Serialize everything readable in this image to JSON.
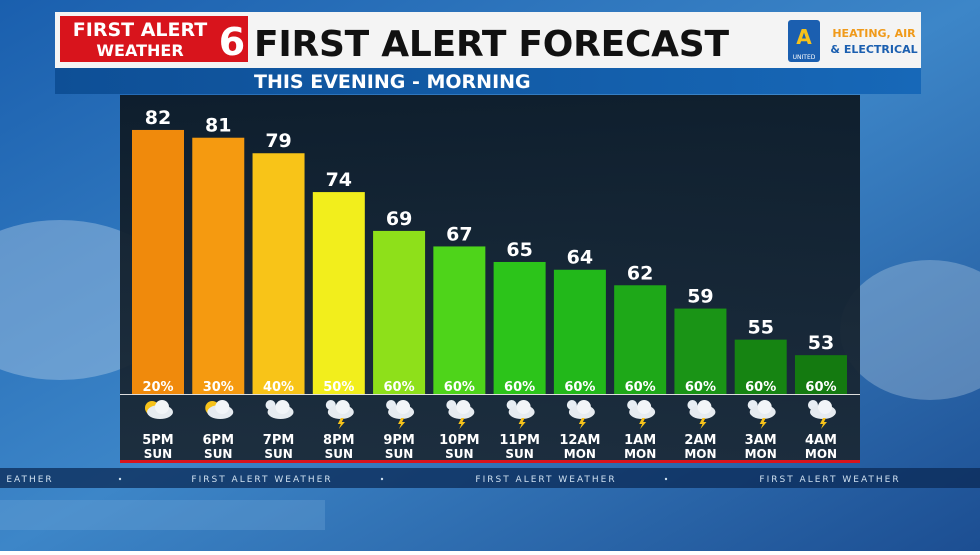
{
  "header": {
    "logo_line1": "FIRST ALERT",
    "logo_line2": "WEATHER",
    "logo_number": "6",
    "title": "FIRST ALERT FORECAST",
    "sponsor_line1": "HEATING, AIR",
    "sponsor_line2": "& ELECTRICAL",
    "sponsor_badge": "UNITED"
  },
  "chart_data": {
    "type": "bar",
    "subtitle": "THIS EVENING - MORNING",
    "categories": [
      "5PM",
      "6PM",
      "7PM",
      "8PM",
      "9PM",
      "10PM",
      "11PM",
      "12AM",
      "1AM",
      "2AM",
      "3AM",
      "4AM"
    ],
    "days": [
      "SUN",
      "SUN",
      "SUN",
      "SUN",
      "SUN",
      "SUN",
      "SUN",
      "MON",
      "MON",
      "MON",
      "MON",
      "MON"
    ],
    "values": [
      82,
      81,
      79,
      74,
      69,
      67,
      65,
      64,
      62,
      59,
      55,
      53
    ],
    "colors": [
      "#f08a0c",
      "#f59a10",
      "#f8c418",
      "#f2ee1c",
      "#8ee01a",
      "#4ed41a",
      "#2cc41a",
      "#22b81a",
      "#1ea818",
      "#1a9416",
      "#168412",
      "#147a10"
    ],
    "precip": {
      "values": [
        20,
        30,
        40,
        50,
        60,
        60,
        60,
        60,
        60,
        60,
        60,
        60
      ],
      "value_labels": [
        "20%",
        "30%",
        "40%",
        "50%",
        "60%",
        "60%",
        "60%",
        "60%",
        "60%",
        "60%",
        "60%",
        "60%"
      ]
    },
    "ylim": [
      48,
      86.5
    ]
  },
  "ticker": [
    "EATHER",
    "FIRST ALERT WEATHER",
    "FIRST ALERT WEATHER",
    "FIRST ALERT WEATHER"
  ]
}
